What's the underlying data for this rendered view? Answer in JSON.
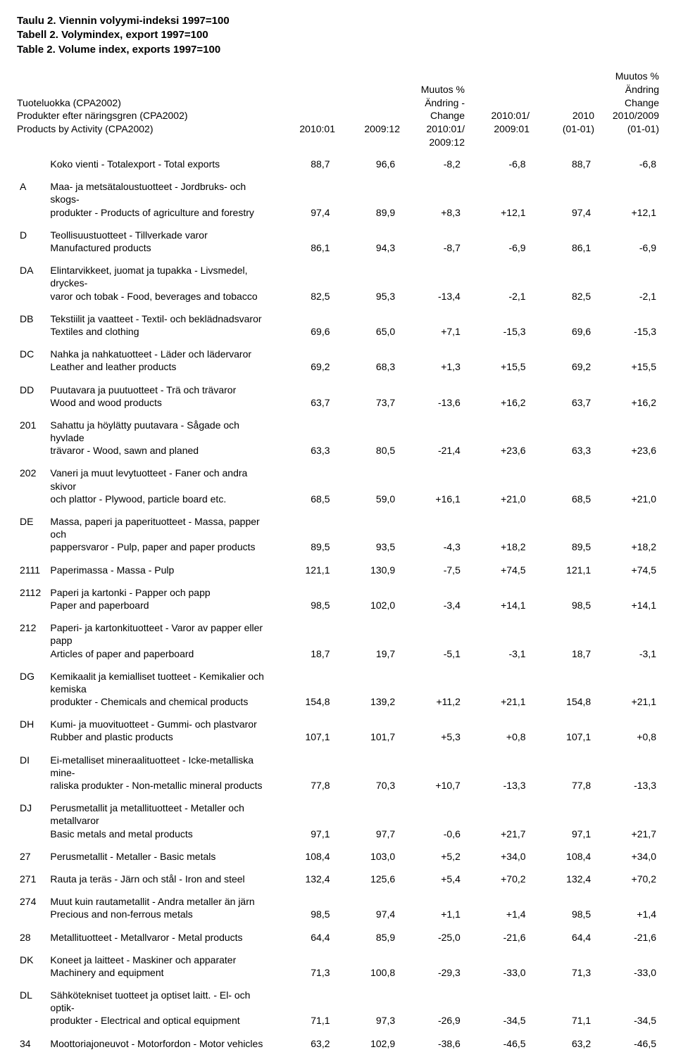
{
  "titles": [
    "Taulu 2. Viennin volyymi-indeksi 1997=100",
    "Tabell 2. Volymindex, export 1997=100",
    "Table 2. Volume index, exports 1997=100"
  ],
  "header": {
    "leftLines": [
      "Tuoteluokka (CPA2002)",
      "Produkter efter näringsgren (CPA2002)",
      "Products by Activity (CPA2002)"
    ],
    "columns": [
      [
        "",
        "",
        "2010:01"
      ],
      [
        "",
        "",
        "2009:12"
      ],
      [
        "Muutos %",
        "Ändring - Change",
        "2010:01/",
        "2009:12"
      ],
      [
        "",
        "",
        "2010:01/",
        "2009:01"
      ],
      [
        "",
        "",
        "2010",
        "(01-01)"
      ],
      [
        "Muutos %",
        "Ändring",
        "Change",
        "2010/2009",
        "(01-01)"
      ]
    ]
  },
  "rows": [
    {
      "code": "",
      "lines": [
        "Koko vienti - Totalexport - Total exports"
      ],
      "vals": [
        "88,7",
        "96,6",
        "-8,2",
        "-6,8",
        "88,7",
        "-6,8"
      ]
    },
    {
      "code": "A",
      "lines": [
        "Maa- ja metsätaloustuotteet - Jordbruks- och skogs-",
        "produkter - Products of agriculture and forestry"
      ],
      "vals": [
        "97,4",
        "89,9",
        "+8,3",
        "+12,1",
        "97,4",
        "+12,1"
      ]
    },
    {
      "code": "D",
      "lines": [
        "Teollisuustuotteet - Tillverkade varor",
        "Manufactured products"
      ],
      "vals": [
        "86,1",
        "94,3",
        "-8,7",
        "-6,9",
        "86,1",
        "-6,9"
      ]
    },
    {
      "code": "DA",
      "lines": [
        "Elintarvikkeet, juomat ja tupakka - Livsmedel, dryckes-",
        "varor och tobak - Food, beverages and tobacco"
      ],
      "vals": [
        "82,5",
        "95,3",
        "-13,4",
        "-2,1",
        "82,5",
        "-2,1"
      ]
    },
    {
      "code": "DB",
      "lines": [
        "Tekstiilit ja vaatteet - Textil- och beklädnadsvaror",
        "Textiles and clothing"
      ],
      "vals": [
        "69,6",
        "65,0",
        "+7,1",
        "-15,3",
        "69,6",
        "-15,3"
      ]
    },
    {
      "code": "DC",
      "lines": [
        "Nahka ja nahkatuotteet - Läder och lädervaror",
        "Leather and leather products"
      ],
      "vals": [
        "69,2",
        "68,3",
        "+1,3",
        "+15,5",
        "69,2",
        "+15,5"
      ]
    },
    {
      "code": "DD",
      "lines": [
        "Puutavara ja puutuotteet - Trä och trävaror",
        "Wood and wood products"
      ],
      "vals": [
        "63,7",
        "73,7",
        "-13,6",
        "+16,2",
        "63,7",
        "+16,2"
      ]
    },
    {
      "code": "201",
      "lines": [
        "Sahattu ja höylätty puutavara - Sågade och hyvlade",
        "trävaror - Wood, sawn and planed"
      ],
      "vals": [
        "63,3",
        "80,5",
        "-21,4",
        "+23,6",
        "63,3",
        "+23,6"
      ]
    },
    {
      "code": "202",
      "lines": [
        "Vaneri ja muut levytuotteet - Faner och andra skivor",
        "och plattor - Plywood, particle board etc."
      ],
      "vals": [
        "68,5",
        "59,0",
        "+16,1",
        "+21,0",
        "68,5",
        "+21,0"
      ]
    },
    {
      "code": "DE",
      "lines": [
        "Massa, paperi ja  paperituotteet - Massa, papper och",
        "pappersvaror - Pulp, paper and paper products"
      ],
      "vals": [
        "89,5",
        "93,5",
        "-4,3",
        "+18,2",
        "89,5",
        "+18,2"
      ]
    },
    {
      "code": "2111",
      "lines": [
        "Paperimassa - Massa - Pulp"
      ],
      "vals": [
        "121,1",
        "130,9",
        "-7,5",
        "+74,5",
        "121,1",
        "+74,5"
      ]
    },
    {
      "code": "2112",
      "lines": [
        "Paperi ja kartonki - Papper och papp",
        "Paper and paperboard"
      ],
      "vals": [
        "98,5",
        "102,0",
        "-3,4",
        "+14,1",
        "98,5",
        "+14,1"
      ]
    },
    {
      "code": "212",
      "lines": [
        "Paperi- ja kartonkituotteet - Varor av papper eller papp",
        "Articles of paper and paperboard"
      ],
      "vals": [
        "18,7",
        "19,7",
        "-5,1",
        "-3,1",
        "18,7",
        "-3,1"
      ]
    },
    {
      "code": "DG",
      "lines": [
        "Kemikaalit ja kemialliset tuotteet - Kemikalier och kemiska",
        "produkter - Chemicals and chemical products"
      ],
      "vals": [
        "154,8",
        "139,2",
        "+11,2",
        "+21,1",
        "154,8",
        "+21,1"
      ]
    },
    {
      "code": "DH",
      "lines": [
        "Kumi- ja muovituotteet - Gummi- och plastvaror",
        "Rubber and plastic products"
      ],
      "vals": [
        "107,1",
        "101,7",
        "+5,3",
        "+0,8",
        "107,1",
        "+0,8"
      ]
    },
    {
      "code": "DI",
      "lines": [
        "Ei-metalliset mineraalituotteet - Icke-metalliska mine-",
        "raliska produkter - Non-metallic mineral products"
      ],
      "vals": [
        "77,8",
        "70,3",
        "+10,7",
        "-13,3",
        "77,8",
        "-13,3"
      ]
    },
    {
      "code": "DJ",
      "lines": [
        "Perusmetallit ja metallituotteet - Metaller och metallvaror",
        "Basic metals and metal products"
      ],
      "vals": [
        "97,1",
        "97,7",
        "-0,6",
        "+21,7",
        "97,1",
        "+21,7"
      ]
    },
    {
      "code": "27",
      "lines": [
        "Perusmetallit - Metaller - Basic metals"
      ],
      "vals": [
        "108,4",
        "103,0",
        "+5,2",
        "+34,0",
        "108,4",
        "+34,0"
      ]
    },
    {
      "code": "271",
      "lines": [
        "Rauta ja teräs - Järn och stål - Iron and steel"
      ],
      "vals": [
        "132,4",
        "125,6",
        "+5,4",
        "+70,2",
        "132,4",
        "+70,2"
      ]
    },
    {
      "code": "274",
      "lines": [
        "Muut kuin rautametallit - Andra metaller än järn",
        "Precious and non-ferrous metals"
      ],
      "vals": [
        "98,5",
        "97,4",
        "+1,1",
        "+1,4",
        "98,5",
        "+1,4"
      ]
    },
    {
      "code": "28",
      "lines": [
        "Metallituotteet - Metallvaror - Metal products"
      ],
      "vals": [
        "64,4",
        "85,9",
        "-25,0",
        "-21,6",
        "64,4",
        "-21,6"
      ]
    },
    {
      "code": "DK",
      "lines": [
        "Koneet ja laitteet - Maskiner och apparater",
        "Machinery and equipment"
      ],
      "vals": [
        "71,3",
        "100,8",
        "-29,3",
        "-33,0",
        "71,3",
        "-33,0"
      ]
    },
    {
      "code": "DL",
      "lines": [
        "Sähkötekniset tuotteet ja optiset laitt. - El- och optik-",
        "produkter - Electrical and optical equipment"
      ],
      "vals": [
        "71,1",
        "97,3",
        "-26,9",
        "-34,5",
        "71,1",
        "-34,5"
      ]
    },
    {
      "code": "34",
      "lines": [
        "Moottoriajoneuvot - Motorfordon - Motor vehicles"
      ],
      "vals": [
        "63,2",
        "102,9",
        "-38,6",
        "-46,5",
        "63,2",
        "-46,5"
      ]
    }
  ]
}
